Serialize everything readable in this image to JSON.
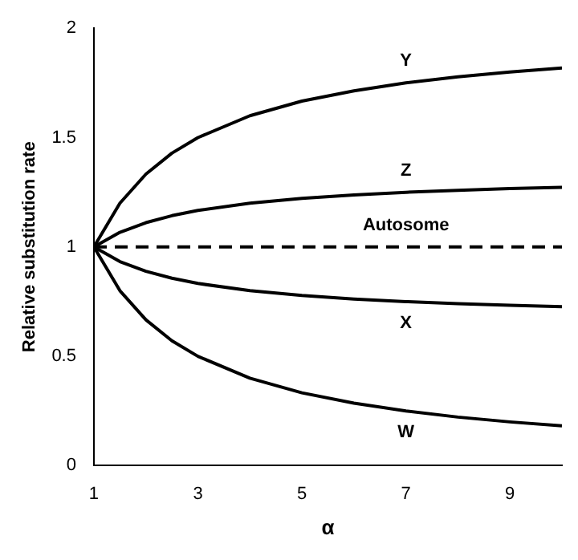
{
  "chart_data": {
    "type": "line",
    "xlabel": "α",
    "ylabel": "Relative substitution rate",
    "x": [
      1,
      1.5,
      2,
      2.5,
      3,
      4,
      5,
      6,
      7,
      8,
      9,
      10
    ],
    "series": [
      {
        "name": "Y",
        "color": "#000000",
        "line_style": "solid",
        "values": [
          1,
          1.2,
          1.333,
          1.429,
          1.5,
          1.6,
          1.667,
          1.714,
          1.75,
          1.778,
          1.8,
          1.818
        ]
      },
      {
        "name": "Z",
        "color": "#000000",
        "line_style": "solid",
        "values": [
          1,
          1.067,
          1.111,
          1.143,
          1.167,
          1.2,
          1.222,
          1.238,
          1.25,
          1.259,
          1.267,
          1.273
        ]
      },
      {
        "name": "Autosome",
        "color": "#000000",
        "line_style": "dashed",
        "values": [
          1,
          1,
          1,
          1,
          1,
          1,
          1,
          1,
          1,
          1,
          1,
          1
        ]
      },
      {
        "name": "X",
        "color": "#000000",
        "line_style": "solid",
        "values": [
          1,
          0.933,
          0.889,
          0.857,
          0.833,
          0.8,
          0.778,
          0.762,
          0.75,
          0.741,
          0.733,
          0.727
        ]
      },
      {
        "name": "W",
        "color": "#000000",
        "line_style": "solid",
        "values": [
          1,
          0.8,
          0.667,
          0.571,
          0.5,
          0.4,
          0.333,
          0.286,
          0.25,
          0.222,
          0.2,
          0.182
        ]
      }
    ],
    "xlim": [
      1,
      10
    ],
    "xticks": [
      1,
      3,
      5,
      7,
      9
    ],
    "ylim": [
      0,
      2
    ],
    "yticks": [
      0,
      0.5,
      1,
      1.5,
      2
    ],
    "grid": false,
    "legend": false,
    "marker": "none"
  }
}
